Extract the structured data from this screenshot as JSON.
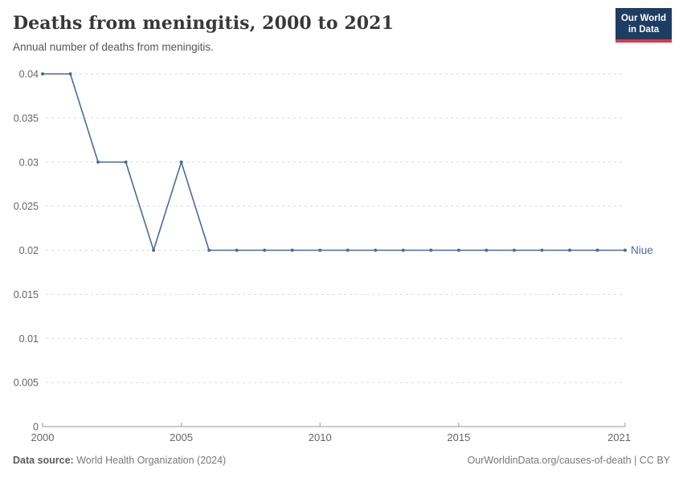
{
  "header": {
    "title": "Deaths from meningitis, 2000 to 2021",
    "subtitle": "Annual number of deaths from meningitis."
  },
  "logo": {
    "line1": "Our World",
    "line2": "in Data",
    "bg_color": "#1d3d63",
    "accent_color": "#d93b4b"
  },
  "chart_data": {
    "type": "line",
    "title": "Deaths from meningitis, 2000 to 2021",
    "xlabel": "",
    "ylabel": "",
    "x": [
      2000,
      2001,
      2002,
      2003,
      2004,
      2005,
      2006,
      2007,
      2008,
      2009,
      2010,
      2011,
      2012,
      2013,
      2014,
      2015,
      2016,
      2017,
      2018,
      2019,
      2020,
      2021
    ],
    "series": [
      {
        "name": "Niue",
        "color": "#4c6a9c",
        "values": [
          0.04,
          0.04,
          0.03,
          0.03,
          0.02,
          0.03,
          0.02,
          0.02,
          0.02,
          0.02,
          0.02,
          0.02,
          0.02,
          0.02,
          0.02,
          0.02,
          0.02,
          0.02,
          0.02,
          0.02,
          0.02,
          0.02
        ]
      }
    ],
    "xlim": [
      2000,
      2021
    ],
    "ylim": [
      0,
      0.04
    ],
    "x_ticks": [
      2000,
      2005,
      2010,
      2015,
      2021
    ],
    "y_ticks": [
      0,
      0.005,
      0.01,
      0.015,
      0.02,
      0.025,
      0.03,
      0.035,
      0.04
    ],
    "grid": "horizontal-dashed",
    "legend_position": "end-of-line",
    "grid_color": "#dadada",
    "axis_color": "#999999",
    "tick_label_color": "#666666"
  },
  "footer": {
    "source_label": "Data source:",
    "source_value": " World Health Organization (2024)",
    "link": "OurWorldinData.org/causes-of-death | CC BY"
  }
}
